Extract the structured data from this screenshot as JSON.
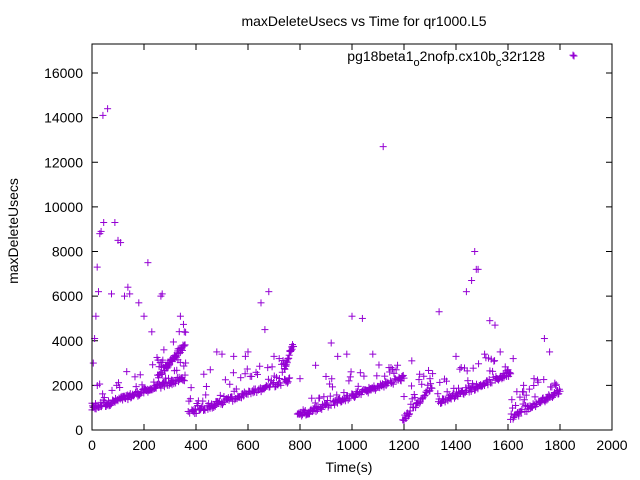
{
  "chart_data": {
    "type": "scatter",
    "title": "maxDeleteUsecs vs Time for qr1000.L5",
    "xlabel": "Time(s)",
    "ylabel": "maxDeleteUsecs",
    "xlim": [
      0,
      2000
    ],
    "ylim": [
      0,
      17300
    ],
    "x_ticks": [
      "0",
      "200",
      "400",
      "600",
      "800",
      "1000",
      "1200",
      "1400",
      "1600",
      "1800",
      "2000"
    ],
    "y_ticks": [
      "0",
      "2000",
      "4000",
      "6000",
      "8000",
      "10000",
      "12000",
      "14000",
      "16000"
    ],
    "grid": false,
    "legend_position": "top-right",
    "series": [
      {
        "name_parts": [
          "pg18beta1",
          "o",
          "2nofp.cx10b",
          "c",
          "32r128"
        ],
        "color": "#9400d3",
        "marker": "plus",
        "segments": [
          {
            "x_start": 0,
            "x_end": 360,
            "y_start": 900,
            "y_end": 2300,
            "n": 160
          },
          {
            "x_start": 250,
            "x_end": 360,
            "y_start": 2300,
            "y_end": 3800,
            "n": 55
          },
          {
            "x_start": 370,
            "x_end": 760,
            "y_start": 700,
            "y_end": 2200,
            "n": 140
          },
          {
            "x_start": 740,
            "x_end": 775,
            "y_start": 2700,
            "y_end": 3800,
            "n": 20
          },
          {
            "x_start": 790,
            "x_end": 1200,
            "y_start": 600,
            "y_end": 2300,
            "n": 150
          },
          {
            "x_start": 1195,
            "x_end": 1310,
            "y_start": 400,
            "y_end": 1900,
            "n": 45
          },
          {
            "x_start": 1330,
            "x_end": 1610,
            "y_start": 1200,
            "y_end": 2500,
            "n": 110
          },
          {
            "x_start": 1610,
            "x_end": 1800,
            "y_start": 500,
            "y_end": 1700,
            "n": 80
          }
        ],
        "scatter_points": [
          [
            0,
            1200
          ],
          [
            5,
            3000
          ],
          [
            10,
            4100
          ],
          [
            15,
            5100
          ],
          [
            20,
            7300
          ],
          [
            25,
            6200
          ],
          [
            30,
            8800
          ],
          [
            35,
            8900
          ],
          [
            42,
            14100
          ],
          [
            45,
            9300
          ],
          [
            60,
            14400
          ],
          [
            75,
            6100
          ],
          [
            88,
            9300
          ],
          [
            100,
            8500
          ],
          [
            110,
            8400
          ],
          [
            125,
            6000
          ],
          [
            138,
            6400
          ],
          [
            145,
            6100
          ],
          [
            180,
            5700
          ],
          [
            200,
            5100
          ],
          [
            215,
            7500
          ],
          [
            230,
            4400
          ],
          [
            265,
            6000
          ],
          [
            270,
            6100
          ],
          [
            340,
            5100
          ],
          [
            355,
            4400
          ],
          [
            430,
            2500
          ],
          [
            455,
            2700
          ],
          [
            480,
            3500
          ],
          [
            500,
            3400
          ],
          [
            545,
            3300
          ],
          [
            590,
            3300
          ],
          [
            600,
            3500
          ],
          [
            650,
            5700
          ],
          [
            665,
            4500
          ],
          [
            680,
            6200
          ],
          [
            700,
            3300
          ],
          [
            720,
            3200
          ],
          [
            800,
            2300
          ],
          [
            860,
            2900
          ],
          [
            900,
            2400
          ],
          [
            920,
            3900
          ],
          [
            945,
            3300
          ],
          [
            980,
            3400
          ],
          [
            1000,
            5100
          ],
          [
            1040,
            5000
          ],
          [
            1080,
            3400
          ],
          [
            1120,
            12700
          ],
          [
            1150,
            2800
          ],
          [
            1200,
            1500
          ],
          [
            1230,
            3100
          ],
          [
            1260,
            2500
          ],
          [
            1300,
            2300
          ],
          [
            1335,
            5300
          ],
          [
            1400,
            3300
          ],
          [
            1420,
            2800
          ],
          [
            1440,
            6200
          ],
          [
            1460,
            6700
          ],
          [
            1472,
            8000
          ],
          [
            1478,
            7200
          ],
          [
            1485,
            7200
          ],
          [
            1510,
            3400
          ],
          [
            1530,
            4900
          ],
          [
            1550,
            4700
          ],
          [
            1570,
            3500
          ],
          [
            1600,
            2700
          ],
          [
            1620,
            3200
          ],
          [
            1660,
            2000
          ],
          [
            1700,
            2300
          ],
          [
            1740,
            4100
          ],
          [
            1760,
            3500
          ],
          [
            1780,
            2100
          ],
          [
            1850,
            16800
          ]
        ]
      }
    ]
  }
}
